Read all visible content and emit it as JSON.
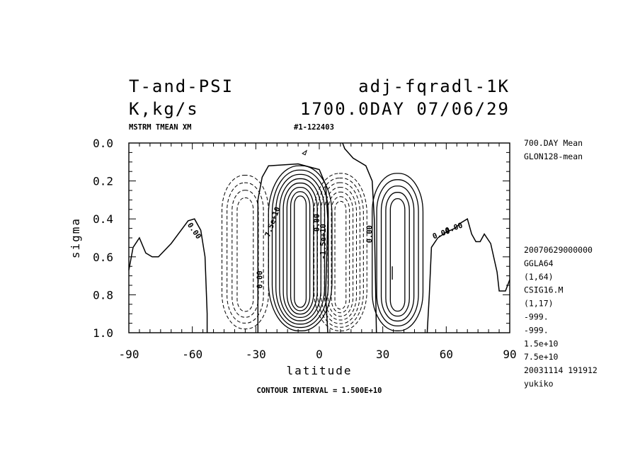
{
  "header": {
    "variable": "T-and-PSI",
    "experiment": "adj-fqradl-1K",
    "units": "K,kg/s",
    "time": "1700.0DAY 07/06/29",
    "sub_left": "MSTRM TMEAN XM",
    "sub_right": "#1-122403"
  },
  "side_info": {
    "top": [
      "700.DAY Mean",
      "GLON128-mean"
    ],
    "bottom": [
      "20070629000000",
      "GGLA64",
      "(1,64)",
      "CSIG16.M",
      "(1,17)",
      "-999.",
      "-999.",
      "1.5e+10",
      "7.5e+10",
      "20031114 191912",
      "yukiko"
    ]
  },
  "footer": {
    "contour_interval": "CONTOUR INTERVAL = 1.500E+10"
  },
  "chart_data": {
    "type": "contour",
    "xlabel": "latitude",
    "ylabel": "sigma",
    "xlim": [
      -90,
      90
    ],
    "ylim": [
      1.0,
      0.0
    ],
    "x_ticks": [
      "-90",
      "-60",
      "-30",
      "0",
      "30",
      "60",
      "90"
    ],
    "y_ticks": [
      "0.0",
      "0.2",
      "0.4",
      "0.6",
      "0.8",
      "1.0"
    ],
    "contour_interval": 15000000000.0,
    "contour_labels": [
      "0.00",
      "7.5e+10",
      "0.00",
      "0.00",
      "-1.5e+10",
      "0.00",
      "0.00",
      "0.00"
    ],
    "cells": [
      {
        "lat": -35,
        "sign": "negative",
        "lat_range": [
          -47,
          -25
        ],
        "sigma_range": [
          0.17,
          0.98
        ],
        "levels": 4
      },
      {
        "lat": -9,
        "sign": "positive",
        "lat_range": [
          -28,
          2
        ],
        "sigma_range": [
          0.12,
          0.99
        ],
        "levels": 8
      },
      {
        "lat": 10,
        "sign": "negative",
        "lat_range": [
          0,
          25
        ],
        "sigma_range": [
          0.16,
          0.99
        ],
        "levels": 7
      },
      {
        "lat": 37,
        "sign": "positive",
        "lat_range": [
          26,
          50
        ],
        "sigma_range": [
          0.16,
          0.99
        ],
        "levels": 5
      }
    ]
  }
}
